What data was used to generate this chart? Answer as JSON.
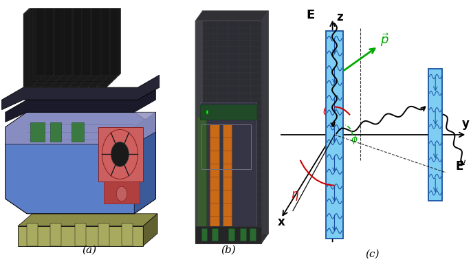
{
  "fig_width": 6.85,
  "fig_height": 4.0,
  "dpi": 100,
  "background_color": "#ffffff",
  "panel_labels": [
    "(a)",
    "(b)",
    "(c)"
  ],
  "panel_label_fontsize": 11,
  "colors": {
    "black": "#000000",
    "dark_gray": "#303030",
    "medium_gray": "#666666",
    "light_gray": "#aaaaaa",
    "blue_body": "#5b7ec8",
    "blue_body_light": "#7090d8",
    "blue_body_dark": "#3a5a9a",
    "lavender": "#9090c0",
    "olive": "#8b8c47",
    "olive_light": "#a8aa60",
    "olive_dark": "#606030",
    "red_part": "#cc6060",
    "red_dark": "#882020",
    "green_electronics": "#2a6a30",
    "green_arrow": "#00aa00",
    "red_angle": "#cc0000",
    "cyan_detector": "#7ecef4",
    "blue_detector": "#1a50a0",
    "near_black": "#111111",
    "charcoal": "#252525",
    "dark_blue_gray": "#404050"
  }
}
